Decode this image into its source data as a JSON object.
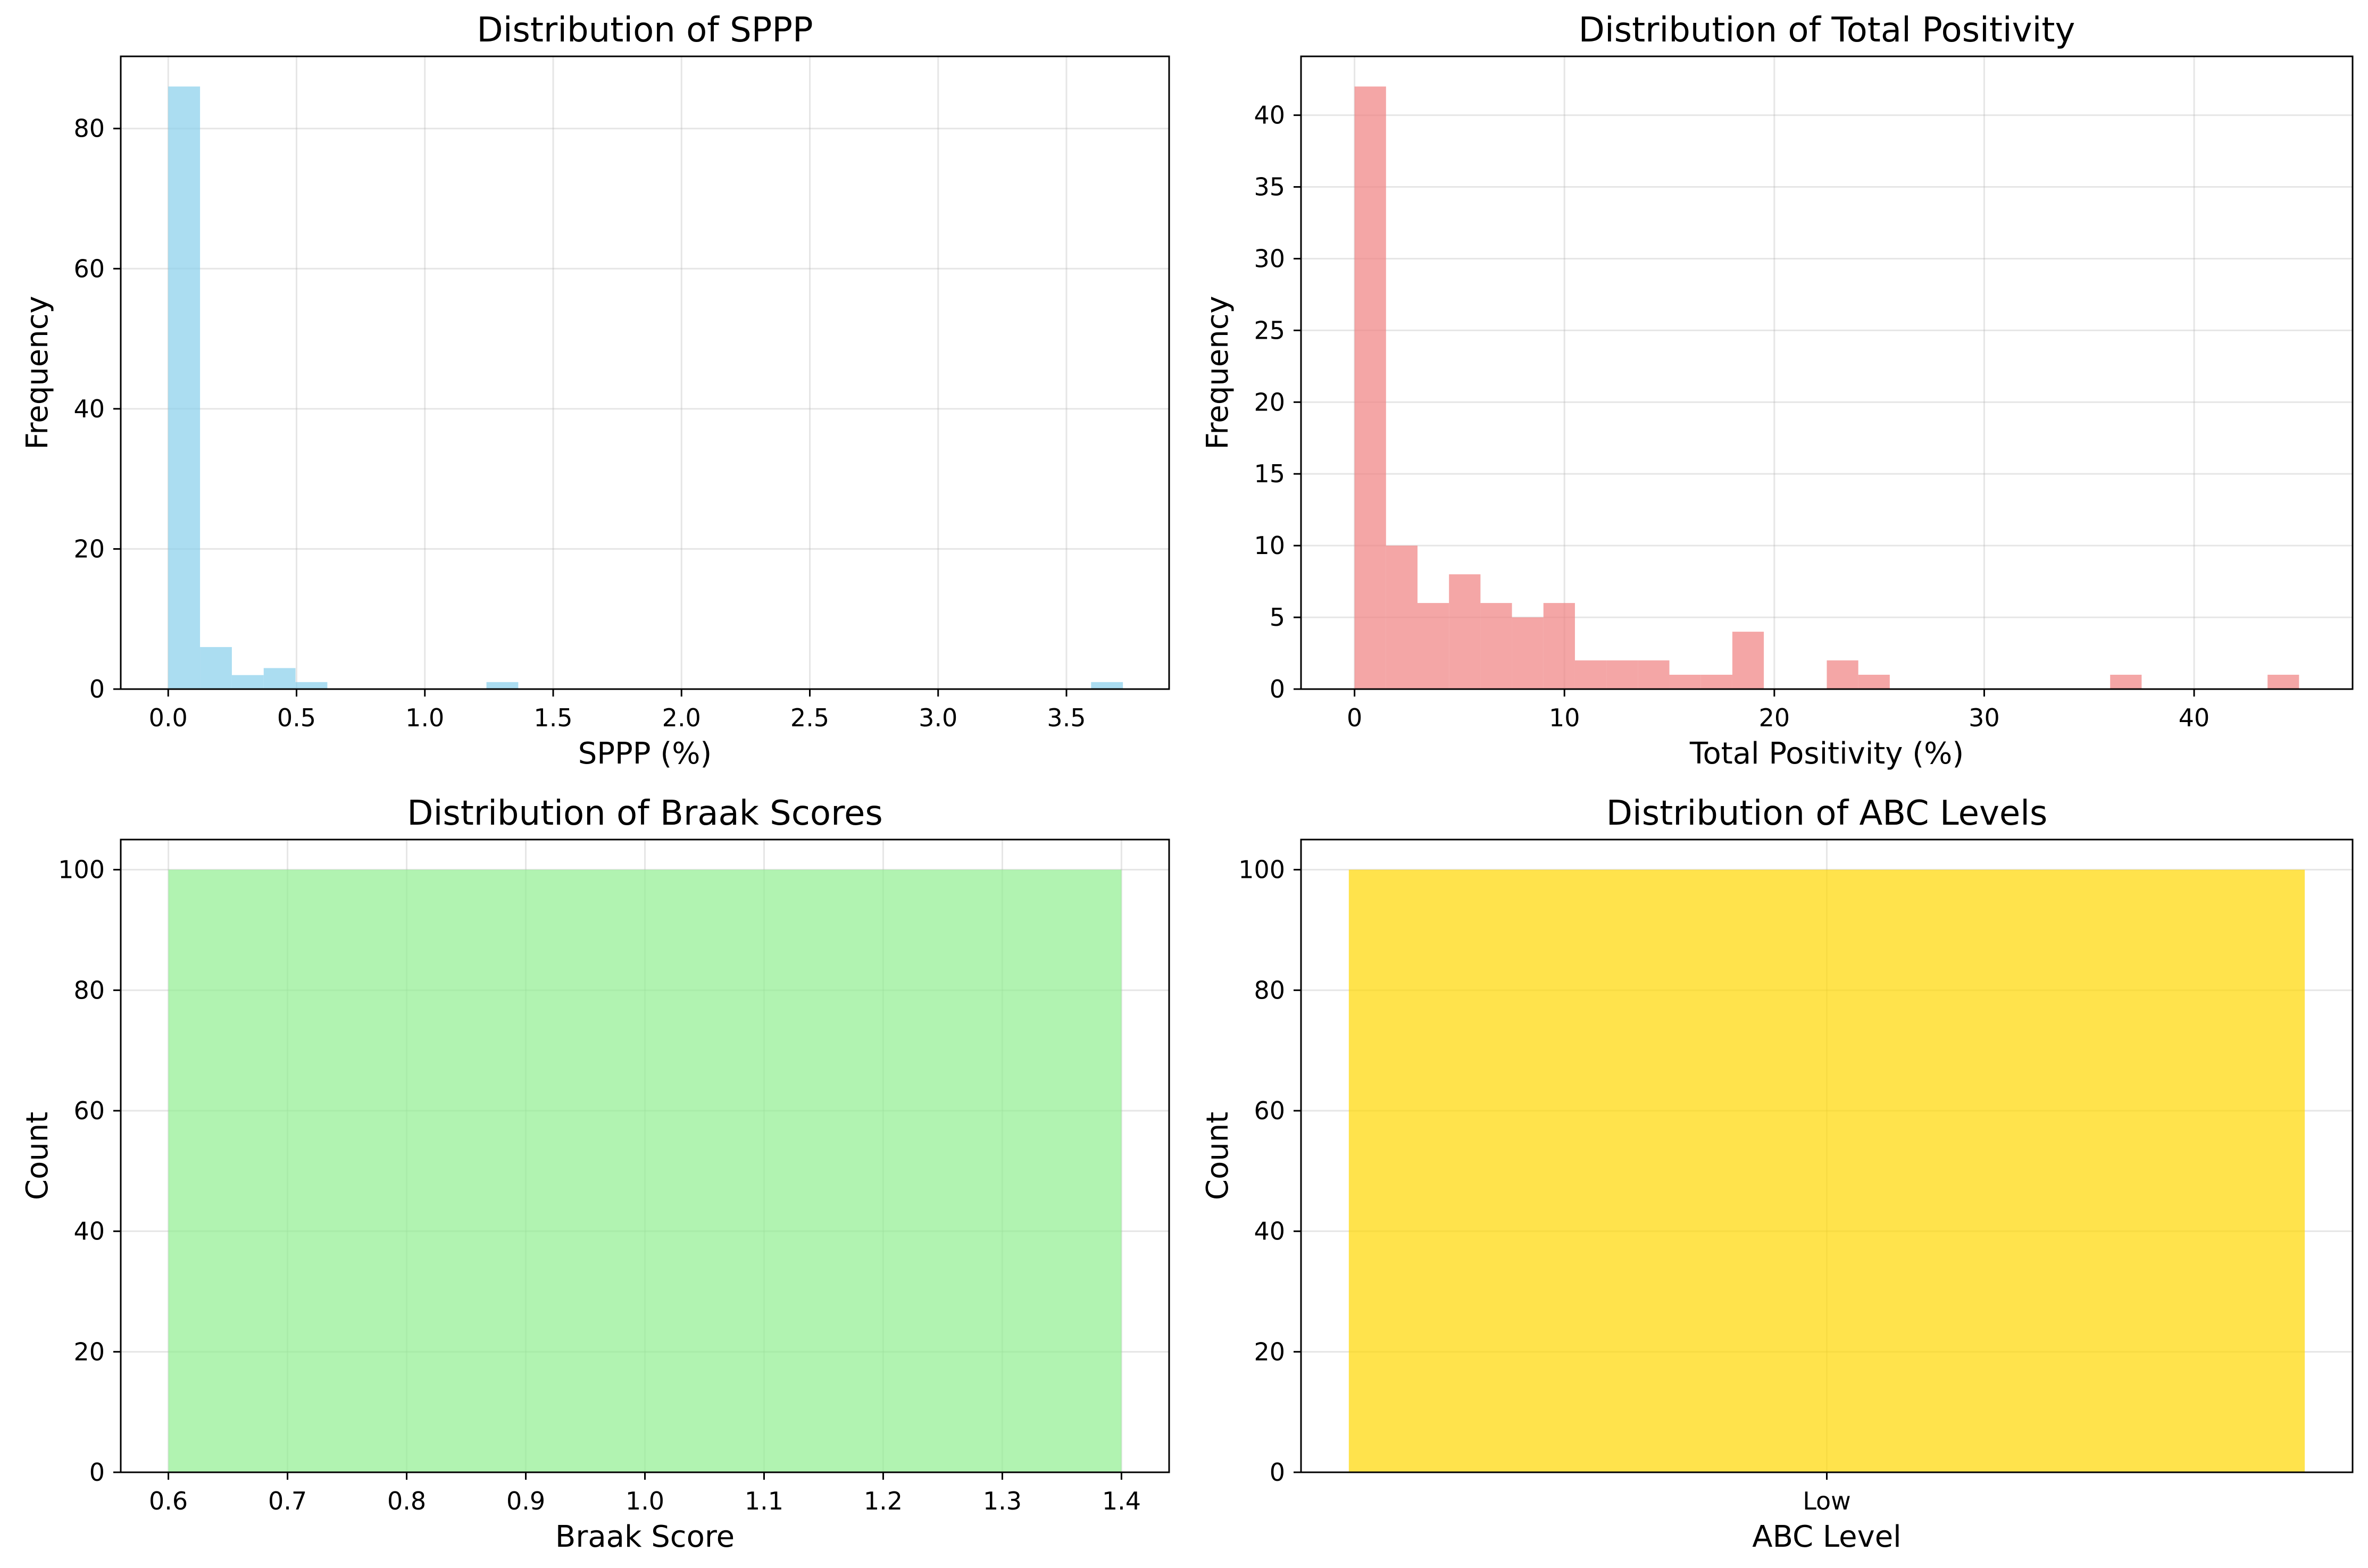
{
  "figure": {
    "background": "#ffffff"
  },
  "chart_data": [
    {
      "type": "bar",
      "title": "Distribution of SPPP",
      "xlabel": "SPPP (%)",
      "ylabel": "Frequency",
      "color": "#87ceeb",
      "alpha": 0.7,
      "grid": true,
      "xlim": [
        -0.185,
        3.9
      ],
      "ylim": [
        0,
        90.3
      ],
      "xticks": [
        0.0,
        0.5,
        1.0,
        1.5,
        2.0,
        2.5,
        3.0,
        3.5
      ],
      "xtick_labels": [
        "0.0",
        "0.5",
        "1.0",
        "1.5",
        "2.0",
        "2.5",
        "3.0",
        "3.5"
      ],
      "yticks": [
        0,
        20,
        40,
        60,
        80
      ],
      "ytick_labels": [
        "0",
        "20",
        "40",
        "60",
        "80"
      ],
      "bin_edges": [
        0.0,
        0.124,
        0.248,
        0.372,
        0.496,
        0.62,
        0.744,
        0.868,
        0.992,
        1.116,
        1.24,
        1.364,
        1.488,
        1.612,
        1.736,
        1.86,
        1.984,
        2.108,
        2.232,
        2.356,
        2.48,
        2.604,
        2.728,
        2.852,
        2.976,
        3.1,
        3.224,
        3.348,
        3.472,
        3.596,
        3.72
      ],
      "values": [
        86,
        6,
        2,
        3,
        1,
        0,
        0,
        0,
        0,
        0,
        1,
        0,
        0,
        0,
        0,
        0,
        0,
        0,
        0,
        0,
        0,
        0,
        0,
        0,
        0,
        0,
        0,
        0,
        0,
        1
      ]
    },
    {
      "type": "bar",
      "title": "Distribution of Total Positivity",
      "xlabel": "Total Positivity (%)",
      "ylabel": "Frequency",
      "color": "#f08080",
      "alpha": 0.7,
      "grid": true,
      "xlim": [
        -2.55,
        47.55
      ],
      "ylim": [
        0,
        44.1
      ],
      "xticks": [
        0,
        10,
        20,
        30,
        40
      ],
      "xtick_labels": [
        "0",
        "10",
        "20",
        "30",
        "40"
      ],
      "yticks": [
        0,
        5,
        10,
        15,
        20,
        25,
        30,
        35,
        40
      ],
      "ytick_labels": [
        "0",
        "5",
        "10",
        "15",
        "20",
        "25",
        "30",
        "35",
        "40"
      ],
      "bin_edges": [
        0.0,
        1.5,
        3.0,
        4.5,
        6.0,
        7.5,
        9.0,
        10.5,
        12.0,
        13.5,
        15.0,
        16.5,
        18.0,
        19.5,
        21.0,
        22.5,
        24.0,
        25.5,
        27.0,
        28.5,
        30.0,
        31.5,
        33.0,
        34.5,
        36.0,
        37.5,
        39.0,
        40.5,
        42.0,
        43.5,
        45.0
      ],
      "values": [
        42,
        10,
        6,
        8,
        6,
        5,
        6,
        2,
        2,
        2,
        1,
        1,
        4,
        0,
        0,
        2,
        1,
        0,
        0,
        0,
        0,
        0,
        0,
        0,
        1,
        0,
        0,
        0,
        0,
        1
      ]
    },
    {
      "type": "bar",
      "title": "Distribution of Braak Scores",
      "xlabel": "Braak Score",
      "ylabel": "Count",
      "color": "#90ee90",
      "alpha": 0.7,
      "grid": true,
      "xlim": [
        0.56,
        1.44
      ],
      "ylim": [
        0,
        105
      ],
      "xticks": [
        0.6,
        0.7,
        0.8,
        0.9,
        1.0,
        1.1,
        1.2,
        1.3,
        1.4
      ],
      "xtick_labels": [
        "0.6",
        "0.7",
        "0.8",
        "0.9",
        "1.0",
        "1.1",
        "1.2",
        "1.3",
        "1.4"
      ],
      "yticks": [
        0,
        20,
        40,
        60,
        80,
        100
      ],
      "ytick_labels": [
        "0",
        "20",
        "40",
        "60",
        "80",
        "100"
      ],
      "bin_edges": [
        0.6,
        1.4
      ],
      "values": [
        100
      ]
    },
    {
      "type": "bar",
      "title": "Distribution of ABC Levels",
      "xlabel": "ABC Level",
      "ylabel": "Count",
      "color": "#ffd700",
      "alpha": 0.7,
      "grid": true,
      "xlim": [
        -0.44,
        0.44
      ],
      "ylim": [
        0,
        105
      ],
      "categories": [
        "Low"
      ],
      "bar_width": 0.8,
      "xticks": [
        0
      ],
      "xtick_labels": [
        "Low"
      ],
      "yticks": [
        0,
        20,
        40,
        60,
        80,
        100
      ],
      "ytick_labels": [
        "0",
        "20",
        "40",
        "60",
        "80",
        "100"
      ],
      "values": [
        100
      ]
    }
  ]
}
